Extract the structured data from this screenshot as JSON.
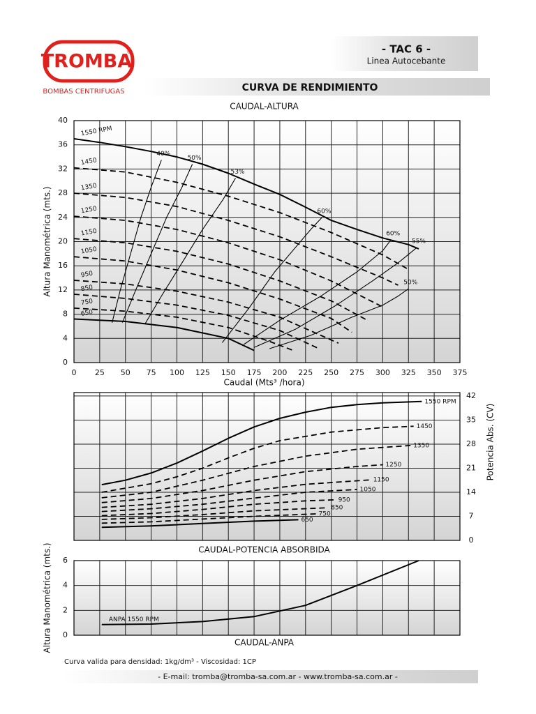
{
  "logo": {
    "name": "TROMBA",
    "registered": "®",
    "tagline": "BOMBAS CENTRIFUGAS"
  },
  "header": {
    "model": "- TAC 6 -",
    "series_name": "Linea Autocebante",
    "section_title": "CURVA DE RENDIMIENTO"
  },
  "note": "Curva valida para densidad: 1kg/dm³ - Viscosidad: 1CP",
  "footer": "- E-mail: tromba@tromba-sa.com.ar - www.tromba-sa.com.ar -",
  "chart_data": [
    {
      "type": "line",
      "title": "CAUDAL-ALTURA",
      "xlabel": "Caudal (Mts³ /hora)",
      "ylabel": "Altura Manométrica (mts.)",
      "xlim": [
        0,
        375
      ],
      "ylim": [
        0,
        40
      ],
      "xticks": [
        0,
        25,
        50,
        75,
        100,
        125,
        150,
        175,
        200,
        225,
        250,
        275,
        300,
        325,
        350,
        375
      ],
      "yticks": [
        0,
        4,
        8,
        12,
        16,
        20,
        24,
        28,
        32,
        36,
        40
      ],
      "grid": true,
      "color": "#000000",
      "series": [
        {
          "name": "1550 RPM",
          "style": "solid",
          "label_at": "start",
          "x": [
            0,
            25,
            50,
            75,
            100,
            125,
            150,
            175,
            200,
            225,
            250,
            275,
            300,
            325,
            335
          ],
          "values": [
            37,
            36.4,
            35.7,
            34.9,
            34,
            32.8,
            31.3,
            29.5,
            27.8,
            25.7,
            23.5,
            22,
            20.6,
            19.5,
            18.8
          ]
        },
        {
          "name": "1450",
          "style": "dashed",
          "label_at": "start",
          "x": [
            0,
            50,
            100,
            150,
            200,
            250,
            300,
            325
          ],
          "values": [
            32.2,
            31.5,
            29.8,
            27.5,
            24.8,
            21.5,
            17.8,
            15.4
          ]
        },
        {
          "name": "1350",
          "style": "dashed",
          "label_at": "start",
          "x": [
            0,
            50,
            100,
            150,
            200,
            250,
            300,
            315
          ],
          "values": [
            28,
            27.3,
            25.8,
            23.5,
            20.8,
            17.5,
            14,
            12.8
          ]
        },
        {
          "name": "1250",
          "style": "dashed",
          "label_at": "start",
          "x": [
            0,
            50,
            100,
            150,
            200,
            250,
            300
          ],
          "values": [
            24.2,
            23.5,
            22,
            19.8,
            17,
            13.5,
            9.2
          ]
        },
        {
          "name": "1150",
          "style": "dashed",
          "label_at": "start",
          "x": [
            0,
            50,
            100,
            150,
            200,
            250,
            285
          ],
          "values": [
            20.5,
            19.8,
            18.4,
            16.3,
            13.5,
            10.2,
            7
          ]
        },
        {
          "name": "1050",
          "style": "dashed",
          "label_at": "start",
          "x": [
            0,
            50,
            100,
            150,
            200,
            250,
            270
          ],
          "values": [
            17.5,
            16.8,
            15.3,
            13.2,
            10.5,
            7.3,
            5
          ]
        },
        {
          "name": "950",
          "style": "dashed",
          "label_at": "start",
          "x": [
            0,
            50,
            100,
            150,
            200,
            257
          ],
          "values": [
            13.6,
            13,
            11.8,
            10,
            7.5,
            3.2
          ]
        },
        {
          "name": "850",
          "style": "dashed",
          "label_at": "start",
          "x": [
            0,
            50,
            100,
            150,
            200,
            238
          ],
          "values": [
            11.3,
            10.6,
            9.5,
            7.8,
            5.3,
            2.3
          ]
        },
        {
          "name": "750",
          "style": "dashed",
          "label_at": "start",
          "x": [
            0,
            50,
            100,
            150,
            190,
            213
          ],
          "values": [
            9,
            8.5,
            7.5,
            5.8,
            3.5,
            2
          ]
        },
        {
          "name": "650",
          "style": "solid",
          "label_at": "start",
          "x": [
            0,
            50,
            100,
            150,
            175
          ],
          "values": [
            7.2,
            6.8,
            5.8,
            4,
            2
          ]
        },
        {
          "name": "40%",
          "style": "thin",
          "label_at": "end",
          "x": [
            37,
            45,
            55,
            65,
            75,
            85
          ],
          "values": [
            6.6,
            12,
            18,
            24,
            29,
            33.5
          ]
        },
        {
          "name": "50%",
          "style": "thin",
          "label_at": "end",
          "x": [
            47,
            60,
            75,
            90,
            105,
            115
          ],
          "values": [
            6.6,
            12,
            18,
            24,
            29,
            32.8
          ]
        },
        {
          "name": "53%",
          "style": "thin",
          "label_at": "end",
          "x": [
            69,
            85,
            105,
            125,
            145,
            157
          ],
          "values": [
            6.4,
            11,
            16.5,
            22,
            27,
            30.5
          ]
        },
        {
          "name": "60%",
          "style": "thin",
          "label_at": "end",
          "x": [
            144,
            170,
            195,
            215,
            230,
            241
          ],
          "values": [
            3.3,
            9,
            15,
            19,
            22,
            24
          ]
        },
        {
          "name": "60%",
          "style": "thin",
          "label_at": "end",
          "x": [
            165,
            200,
            240,
            275,
            300,
            308
          ],
          "values": [
            3,
            7,
            11,
            15,
            18.5,
            20.3
          ]
        },
        {
          "name": "55%",
          "style": "thin",
          "label_at": "end",
          "x": [
            175,
            215,
            255,
            290,
            315,
            333
          ],
          "values": [
            2.5,
            5.5,
            9.5,
            13.5,
            16.5,
            19
          ]
        },
        {
          "name": "50%",
          "style": "thin",
          "label_at": "end",
          "x": [
            190,
            230,
            270,
            300,
            315,
            325
          ],
          "values": [
            2.3,
            4.5,
            7.5,
            9.5,
            11,
            12.2
          ]
        }
      ]
    },
    {
      "type": "line",
      "title": "CAUDAL-POTENCIA ABSORBIDA",
      "ylabel": "Potencia Abs. (CV)",
      "yaxis_position": "right",
      "xlim": [
        0,
        375
      ],
      "ylim": [
        0,
        43
      ],
      "xticks": [
        0,
        25,
        50,
        75,
        100,
        125,
        150,
        175,
        200,
        225,
        250,
        275,
        300,
        325,
        350,
        375
      ],
      "show_xtick_labels": false,
      "yticks": [
        0,
        7,
        14,
        21,
        28,
        35,
        42
      ],
      "grid": true,
      "color": "#000000",
      "series": [
        {
          "name": "1550 RPM",
          "style": "solid",
          "label_at": "end",
          "x": [
            27,
            50,
            75,
            100,
            125,
            150,
            175,
            200,
            225,
            250,
            275,
            300,
            338
          ],
          "values": [
            16.2,
            17.5,
            19.6,
            22.5,
            26,
            29.7,
            33,
            35.5,
            37.3,
            38.7,
            39.5,
            40,
            40.4
          ]
        },
        {
          "name": "1450",
          "style": "dashed",
          "label_at": "end",
          "x": [
            27,
            75,
            100,
            125,
            150,
            175,
            200,
            250,
            300,
            330
          ],
          "values": [
            14,
            16.5,
            18.5,
            21,
            24,
            26.8,
            29,
            31.5,
            32.8,
            33.2
          ]
        },
        {
          "name": "1350",
          "style": "dashed",
          "label_at": "end",
          "x": [
            27,
            75,
            125,
            175,
            225,
            275,
            327
          ],
          "values": [
            12.4,
            14,
            17.5,
            21.5,
            24.5,
            26.5,
            27.6
          ]
        },
        {
          "name": "1250",
          "style": "dashed",
          "label_at": "end",
          "x": [
            27,
            75,
            125,
            175,
            225,
            275,
            300
          ],
          "values": [
            11,
            12.2,
            14.5,
            17.5,
            20,
            21.5,
            22
          ]
        },
        {
          "name": "1150",
          "style": "dashed",
          "label_at": "end",
          "x": [
            27,
            75,
            125,
            175,
            225,
            288
          ],
          "values": [
            9.6,
            10.5,
            12.2,
            14.5,
            16.3,
            17.6
          ]
        },
        {
          "name": "1050",
          "style": "dashed",
          "label_at": "end",
          "x": [
            27,
            75,
            125,
            175,
            225,
            275
          ],
          "values": [
            8.4,
            9.2,
            10.5,
            12.3,
            14,
            14.8
          ]
        },
        {
          "name": "950",
          "style": "dashed",
          "label_at": "end",
          "x": [
            27,
            75,
            125,
            175,
            225,
            254
          ],
          "values": [
            7.2,
            7.8,
            9,
            10.5,
            11.5,
            11.8
          ]
        },
        {
          "name": "850",
          "style": "dashed",
          "label_at": "end",
          "x": [
            27,
            75,
            125,
            175,
            247
          ],
          "values": [
            6.1,
            6.6,
            7.5,
            8.6,
            9.5
          ]
        },
        {
          "name": "750",
          "style": "dashed",
          "label_at": "end",
          "x": [
            27,
            75,
            125,
            175,
            235
          ],
          "values": [
            5,
            5.4,
            6.2,
            7,
            7.7
          ]
        },
        {
          "name": "650",
          "style": "solid",
          "label_at": "end",
          "x": [
            27,
            75,
            125,
            175,
            218
          ],
          "values": [
            3.8,
            4.2,
            4.9,
            5.6,
            6
          ]
        }
      ]
    },
    {
      "type": "line",
      "title": "CAUDAL-ANPA",
      "ylabel": "Altura Manométrica (mts.)",
      "xlim": [
        0,
        375
      ],
      "ylim": [
        0,
        6
      ],
      "xticks": [
        0,
        25,
        50,
        75,
        100,
        125,
        150,
        175,
        200,
        225,
        250,
        275,
        300,
        325,
        350,
        375
      ],
      "show_xtick_labels": false,
      "yticks": [
        0,
        2,
        4,
        6
      ],
      "grid": true,
      "color": "#000000",
      "series": [
        {
          "name": "ANPA 1550 RPM",
          "style": "solid",
          "label_at": "start",
          "x": [
            27,
            75,
            125,
            175,
            225,
            275,
            335
          ],
          "values": [
            0.86,
            0.9,
            1.1,
            1.5,
            2.4,
            4,
            6
          ]
        }
      ]
    }
  ]
}
